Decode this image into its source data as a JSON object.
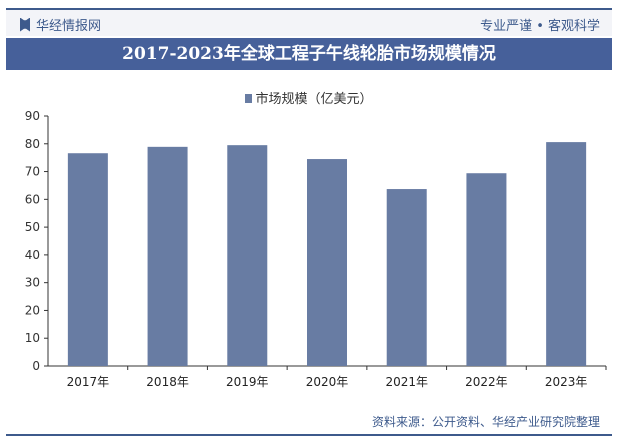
{
  "header": {
    "brand": "华经情报网",
    "slogan": "专业严谨 • 客观科学"
  },
  "footer": {
    "source": "资料来源：公开资料、华经产业研究院整理"
  },
  "chart_data": {
    "type": "bar",
    "title": "2017-2023年全球工程子午线轮胎市场规模情况",
    "categories": [
      "2017年",
      "2018年",
      "2019年",
      "2020年",
      "2021年",
      "2022年",
      "2023年"
    ],
    "series": [
      {
        "name": "市场规模（亿美元）",
        "values": [
          76.6,
          78.9,
          79.5,
          74.5,
          63.7,
          69.4,
          80.6
        ],
        "color": "#687ca3"
      }
    ],
    "ylim": [
      0,
      90
    ],
    "yticks": [
      0,
      10,
      20,
      30,
      40,
      50,
      60,
      70,
      80,
      90
    ],
    "legend": "top-center",
    "grid": false
  }
}
